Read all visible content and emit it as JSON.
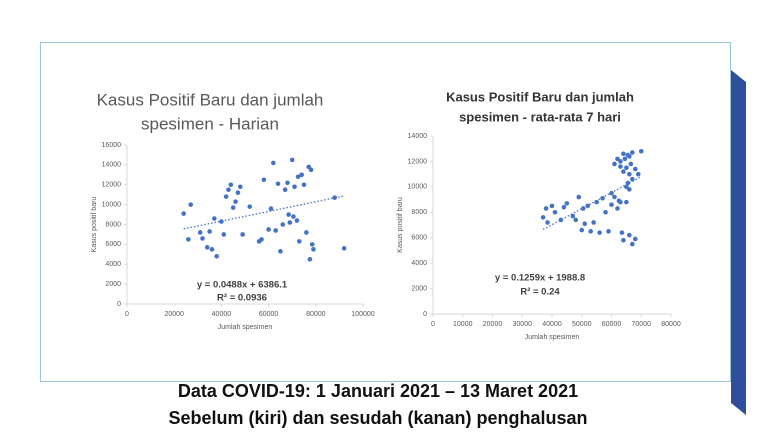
{
  "chart_data": [
    {
      "type": "scatter",
      "title": [
        "Kasus Positif Baru dan jumlah",
        "spesimen - Harian"
      ],
      "x_label": "Jumlah spesimen",
      "y_label": "Kasus positif baru",
      "color": "#4472c4",
      "x": [
        24000,
        26000,
        27000,
        31000,
        32000,
        34000,
        35000,
        36000,
        37000,
        38000,
        40000,
        41000,
        42000,
        43000,
        44000,
        45000,
        46000,
        47000,
        48000,
        49000,
        52000,
        56000,
        57000,
        58000,
        60000,
        61000,
        62000,
        63000,
        64000,
        65000,
        66000,
        67000,
        68000,
        68500,
        69000,
        70000,
        70500,
        71000,
        72000,
        72500,
        73000,
        74000,
        75000,
        76000,
        77000,
        77500,
        78000,
        78500,
        79000,
        88000,
        92000
      ],
      "values": [
        9100,
        6500,
        10000,
        7200,
        6600,
        5700,
        7300,
        5500,
        8600,
        4800,
        8300,
        7000,
        10800,
        11500,
        12000,
        9700,
        10300,
        11200,
        11800,
        7000,
        9800,
        6300,
        6500,
        12500,
        7500,
        9600,
        14200,
        7400,
        12100,
        5300,
        8000,
        11500,
        12200,
        9000,
        8200,
        14500,
        8800,
        11800,
        8400,
        12800,
        6300,
        13000,
        12000,
        7200,
        13800,
        4500,
        13500,
        6000,
        5500,
        10700,
        5600
      ],
      "trendline": {
        "x": [
          24000,
          92000
        ],
        "values": [
          7557,
          10876
        ]
      },
      "equation": "y = 0.0488x + 6386.1",
      "r_squared": "R² = 0.0936",
      "xlim": [
        0,
        100000
      ],
      "xticks": [
        0,
        20000,
        40000,
        60000,
        80000,
        100000
      ],
      "ylim": [
        0,
        16000
      ],
      "yticks": [
        0,
        2000,
        4000,
        6000,
        8000,
        10000,
        12000,
        14000,
        16000
      ]
    },
    {
      "type": "scatter",
      "title": [
        "Kasus Positif Baru dan jumlah",
        "spesimen - rata-rata 7 hari"
      ],
      "x_label": "Jumlah spesimen",
      "y_label": "Kasus positif baru",
      "color": "#4472c4",
      "x": [
        37000,
        38000,
        38500,
        40000,
        41000,
        43000,
        44000,
        45000,
        47000,
        48000,
        49000,
        50000,
        50500,
        51000,
        52000,
        53000,
        54000,
        55000,
        56000,
        57000,
        58000,
        59000,
        60000,
        61000,
        62000,
        62500,
        63000,
        63500,
        64000,
        64500,
        65000,
        65500,
        66000,
        66500,
        67000,
        64000,
        65000,
        65500,
        66000,
        67000,
        68000,
        66000,
        65000,
        64000,
        66000,
        67000,
        68000,
        69000,
        70000,
        63000,
        61000,
        62000,
        60000,
        63000
      ],
      "values": [
        7600,
        8300,
        7200,
        8500,
        8000,
        7400,
        8400,
        8700,
        7700,
        7400,
        9200,
        6600,
        8300,
        7100,
        8500,
        6500,
        7200,
        8800,
        6400,
        9100,
        8000,
        6500,
        9500,
        9200,
        12200,
        8900,
        12000,
        6400,
        12600,
        12200,
        11500,
        12500,
        12400,
        11800,
        12700,
        11200,
        10000,
        10300,
        11000,
        10600,
        11400,
        9800,
        8800,
        5800,
        6200,
        5500,
        5900,
        11000,
        12800,
        11600,
        11800,
        8300,
        8600,
        8800
      ],
      "trendline": {
        "x": [
          37000,
          70000
        ],
        "values": [
          6647,
          10802
        ]
      },
      "equation": "y = 0.1259x + 1988.8",
      "r_squared": "R² = 0.24",
      "xlim": [
        0,
        80000
      ],
      "xticks": [
        0,
        10000,
        20000,
        30000,
        40000,
        50000,
        60000,
        70000,
        80000
      ],
      "ylim": [
        0,
        14000
      ],
      "yticks": [
        0,
        2000,
        4000,
        6000,
        8000,
        10000,
        12000,
        14000
      ]
    }
  ],
  "caption": [
    "Data COVID-19: 1 Januari 2021 – 13 Maret 2021",
    "Sebelum (kiri) dan sesudah (kanan) penghalusan"
  ]
}
